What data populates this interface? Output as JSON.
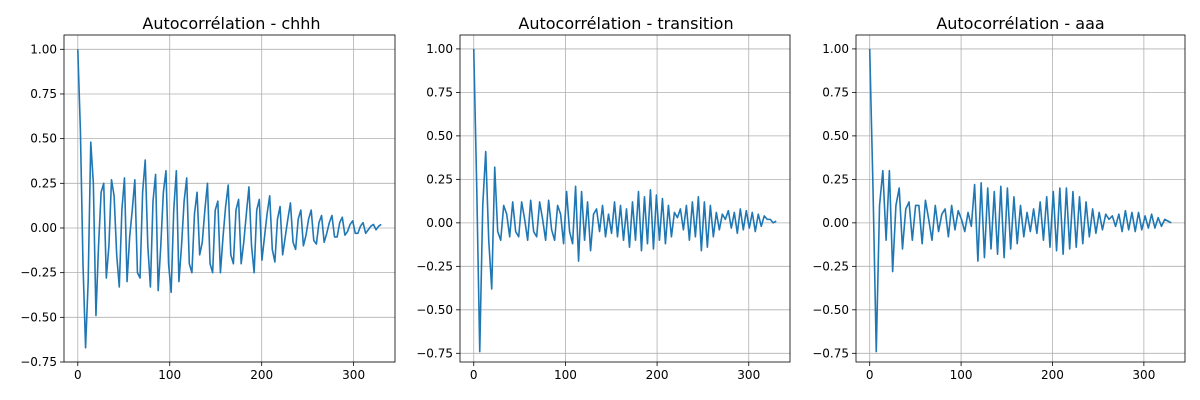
{
  "figure": {
    "background": "#ffffff",
    "line_color": "#1f77b4",
    "grid_color": "#b0b0b0"
  },
  "chart_data": [
    {
      "type": "line",
      "title": "Autocorrélation - chhh",
      "xlabel": "",
      "ylabel": "",
      "xlim": [
        -15,
        345
      ],
      "ylim": [
        -0.75,
        1.08
      ],
      "xticks": [
        0,
        100,
        200,
        300
      ],
      "xtick_labels": [
        "0",
        "100",
        "200",
        "300"
      ],
      "yticks": [
        -0.75,
        -0.5,
        -0.25,
        0.0,
        0.25,
        0.5,
        0.75,
        1.0
      ],
      "ytick_labels": [
        "−0.75",
        "−0.50",
        "−0.25",
        "0.00",
        "0.25",
        "0.50",
        "0.75",
        "1.00"
      ],
      "grid": true,
      "series": [
        {
          "x_start": 0,
          "x_step": 1,
          "values": [
            1.0,
            0.55,
            -0.2,
            -0.67,
            -0.3,
            0.48,
            0.25,
            -0.49,
            -0.1,
            0.2,
            0.25,
            -0.28,
            -0.1,
            0.27,
            0.18,
            -0.15,
            -0.33,
            0.1,
            0.28,
            -0.3,
            -0.05,
            0.1,
            0.27,
            -0.25,
            -0.28,
            0.2,
            0.38,
            -0.1,
            -0.33,
            0.15,
            0.3,
            -0.35,
            -0.1,
            0.2,
            0.32,
            -0.2,
            -0.36,
            0.1,
            0.32,
            -0.3,
            -0.1,
            0.15,
            0.28,
            -0.2,
            -0.25,
            0.08,
            0.2,
            -0.15,
            -0.08,
            0.1,
            0.25,
            -0.2,
            -0.25,
            0.1,
            0.15,
            -0.25,
            -0.05,
            0.12,
            0.24,
            -0.15,
            -0.2,
            0.1,
            0.16,
            -0.2,
            -0.08,
            0.08,
            0.23,
            -0.1,
            -0.25,
            0.1,
            0.16,
            -0.18,
            -0.05,
            0.08,
            0.18,
            -0.12,
            -0.19,
            0.05,
            0.12,
            -0.15,
            -0.05,
            0.05,
            0.14,
            -0.08,
            -0.12,
            0.05,
            0.1,
            -0.1,
            -0.04,
            0.05,
            0.1,
            -0.07,
            -0.09,
            0.03,
            0.07,
            -0.08,
            -0.03,
            0.03,
            0.07,
            -0.05,
            -0.05,
            0.03,
            0.06,
            -0.04,
            -0.02,
            0.02,
            0.04,
            -0.03,
            -0.03,
            0.01,
            0.03,
            -0.03,
            -0.01,
            0.01,
            0.02,
            -0.01,
            0.01,
            0.02
          ]
        }
      ]
    },
    {
      "type": "line",
      "title": "Autocorrélation - transition",
      "xlabel": "",
      "ylabel": "",
      "xlim": [
        -15,
        345
      ],
      "ylim": [
        -0.8,
        1.08
      ],
      "xticks": [
        0,
        100,
        200,
        300
      ],
      "xtick_labels": [
        "0",
        "100",
        "200",
        "300"
      ],
      "yticks": [
        -0.75,
        -0.5,
        -0.25,
        0.0,
        0.25,
        0.5,
        0.75,
        1.0
      ],
      "ytick_labels": [
        "−0.75",
        "−0.50",
        "−0.25",
        "0.00",
        "0.25",
        "0.50",
        "0.75",
        "1.00"
      ],
      "grid": true,
      "series": [
        {
          "x_start": 0,
          "x_step": 1,
          "values": [
            1.0,
            0.2,
            -0.74,
            0.1,
            0.41,
            -0.1,
            -0.38,
            0.32,
            -0.05,
            -0.1,
            0.1,
            0.05,
            -0.08,
            0.12,
            -0.05,
            -0.08,
            0.12,
            0.02,
            -0.1,
            0.13,
            -0.05,
            -0.08,
            0.12,
            0.02,
            -0.1,
            0.13,
            -0.04,
            -0.1,
            0.1,
            0.05,
            -0.12,
            0.18,
            -0.05,
            -0.12,
            0.21,
            -0.22,
            0.18,
            -0.1,
            0.12,
            -0.16,
            0.05,
            0.08,
            -0.05,
            0.1,
            -0.08,
            0.05,
            -0.06,
            0.12,
            -0.08,
            0.1,
            -0.1,
            0.08,
            -0.14,
            0.12,
            -0.1,
            0.18,
            -0.16,
            0.15,
            -0.12,
            0.19,
            -0.15,
            0.16,
            -0.1,
            0.14,
            -0.12,
            0.1,
            -0.08,
            0.06,
            0.03,
            0.08,
            -0.04,
            0.1,
            -0.1,
            0.12,
            -0.08,
            0.15,
            -0.16,
            0.12,
            -0.14,
            0.1,
            -0.08,
            0.06,
            -0.04,
            0.05,
            0.02,
            0.07,
            -0.03,
            0.06,
            -0.06,
            0.08,
            -0.04,
            0.07,
            -0.03,
            0.06,
            -0.05,
            0.05,
            -0.02,
            0.04,
            0.02,
            0.02,
            0.0,
            0.01
          ]
        }
      ]
    },
    {
      "type": "line",
      "title": "Autocorrélation - aaa",
      "xlabel": "",
      "ylabel": "",
      "xlim": [
        -15,
        345
      ],
      "ylim": [
        -0.8,
        1.08
      ],
      "xticks": [
        0,
        100,
        200,
        300
      ],
      "xtick_labels": [
        "0",
        "100",
        "200",
        "300"
      ],
      "yticks": [
        -0.75,
        -0.5,
        -0.25,
        0.0,
        0.25,
        0.5,
        0.75,
        1.0
      ],
      "ytick_labels": [
        "−0.75",
        "−0.50",
        "−0.25",
        "0.00",
        "0.25",
        "0.50",
        "0.75",
        "1.00"
      ],
      "grid": true,
      "series": [
        {
          "x_start": 0,
          "x_step": 1,
          "values": [
            1.0,
            0.2,
            -0.74,
            0.1,
            0.3,
            -0.1,
            0.3,
            -0.28,
            0.1,
            0.2,
            -0.15,
            0.08,
            0.12,
            -0.1,
            0.1,
            0.1,
            -0.12,
            0.13,
            0.02,
            -0.1,
            0.1,
            -0.05,
            0.05,
            0.08,
            -0.08,
            0.1,
            -0.04,
            0.07,
            0.02,
            -0.05,
            0.06,
            -0.02,
            0.22,
            -0.22,
            0.23,
            -0.2,
            0.2,
            -0.15,
            0.18,
            -0.18,
            0.21,
            -0.2,
            0.2,
            -0.15,
            0.15,
            -0.12,
            0.1,
            -0.08,
            0.06,
            -0.05,
            0.08,
            -0.06,
            0.12,
            -0.1,
            0.15,
            -0.14,
            0.18,
            -0.16,
            0.2,
            -0.18,
            0.2,
            -0.15,
            0.18,
            -0.14,
            0.15,
            -0.12,
            0.12,
            -0.08,
            0.08,
            -0.06,
            0.06,
            -0.04,
            0.05,
            0.02,
            0.04,
            -0.02,
            0.05,
            -0.05,
            0.07,
            -0.04,
            0.06,
            -0.05,
            0.06,
            -0.04,
            0.04,
            -0.03,
            0.05,
            -0.03,
            0.03,
            -0.02,
            0.02,
            0.01,
            0.0
          ]
        }
      ]
    }
  ]
}
